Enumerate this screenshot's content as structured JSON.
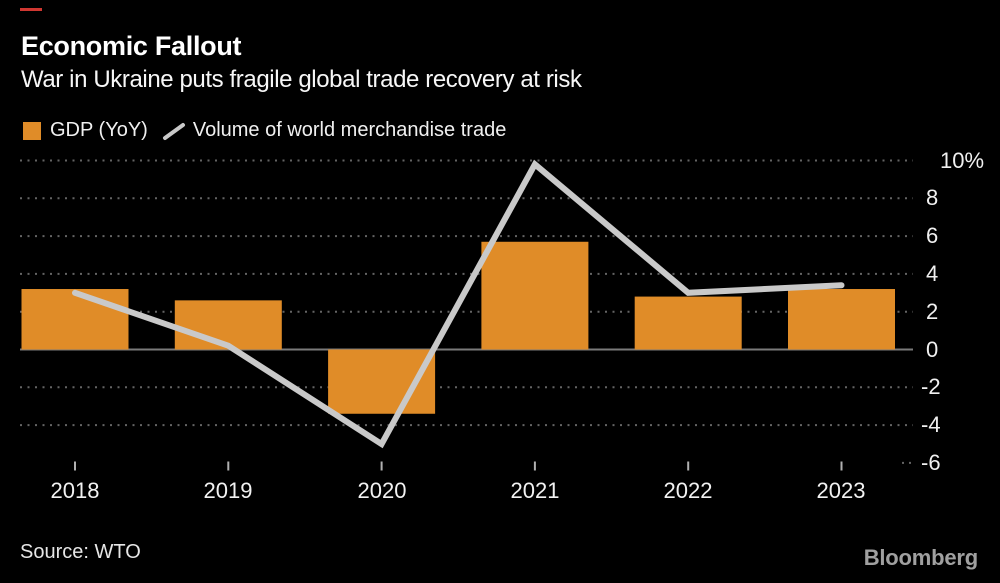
{
  "header": {
    "title": "Economic Fallout",
    "subtitle": "War in Ukraine puts fragile global trade recovery at risk"
  },
  "legend": [
    {
      "label": "GDP (YoY)",
      "swatch": "square",
      "color": "#e08c28"
    },
    {
      "label": "Volume of world merchandise trade",
      "swatch": "line",
      "color": "#c9c9c9"
    }
  ],
  "chart_data": {
    "type": "bar+line",
    "title": "Economic Fallout",
    "subtitle": "War in Ukraine puts fragile global trade recovery at risk",
    "categories": [
      "2018",
      "2019",
      "2020",
      "2021",
      "2022",
      "2023"
    ],
    "series": [
      {
        "name": "GDP (YoY)",
        "type": "bar",
        "color": "#e08c28",
        "values": [
          3.2,
          2.6,
          -3.4,
          5.7,
          2.8,
          3.2
        ]
      },
      {
        "name": "Volume of world merchandise trade",
        "type": "line",
        "color": "#c9c9c9",
        "values": [
          3.0,
          0.2,
          -5.0,
          9.8,
          3.0,
          3.4
        ]
      }
    ],
    "y_ticks": [
      "10%",
      "8",
      "6",
      "4",
      "2",
      "0",
      "-2",
      "-4",
      "-6"
    ],
    "y_tick_values": [
      10,
      8,
      6,
      4,
      2,
      0,
      -2,
      -4,
      -6
    ],
    "ylim": [
      -6,
      10
    ],
    "unit": "%",
    "grid": "dotted horizontal, solid zero line",
    "legend_position": "top",
    "y_axis_side": "right"
  },
  "colors": {
    "background": "#000000",
    "bar": "#e08c28",
    "line": "#c9c9c9",
    "grid_dotted": "#646464",
    "zero_line": "#7a7a7a",
    "tick": "#b0b0b0",
    "text": "#f5f5f5",
    "brand": "#a0a0a0",
    "accent_dash": "#d03731"
  },
  "footer": {
    "source": "Source: WTO",
    "brand": "Bloomberg"
  }
}
